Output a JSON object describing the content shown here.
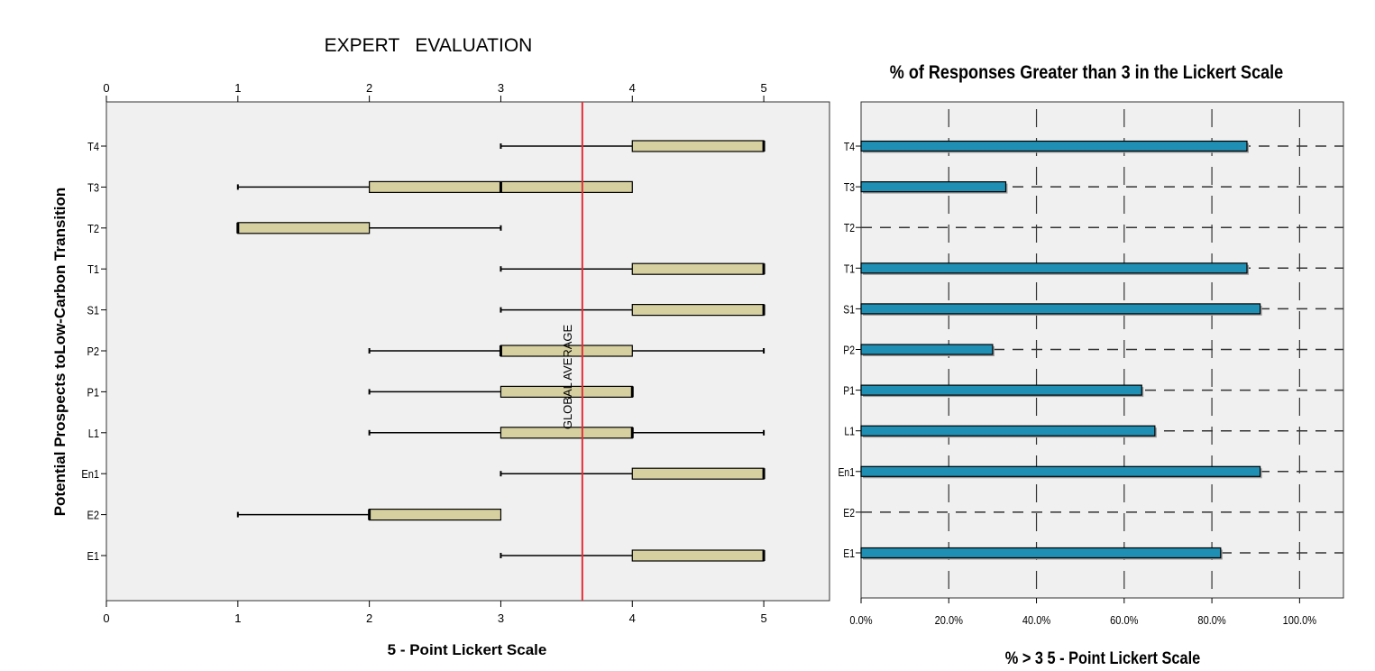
{
  "chart_data": [
    {
      "type": "boxplot",
      "title": "EXPERT   EVALUATION",
      "xlabel": "5 - Point Lickert Scale",
      "ylabel": "Potential Prospects toLow-Carbon Transition",
      "xlim": [
        0,
        5.5
      ],
      "xticks": [
        "0",
        "1",
        "2",
        "3",
        "4",
        "5"
      ],
      "orientation": "horizontal",
      "box_color": "#d6d0a0",
      "plot_background": "#f0f0f0",
      "reference_line": {
        "label": "GLOBAL AVERAGE",
        "value": 3.62,
        "color": "#e0303a"
      },
      "categories": [
        "T4",
        "T3",
        "T2",
        "T1",
        "S1",
        "P2",
        "P1",
        "L1",
        "En1",
        "E2",
        "E1"
      ],
      "series": [
        {
          "category": "T4",
          "min": 3,
          "q1": 4,
          "median": 5,
          "q3": 5,
          "max": 5
        },
        {
          "category": "T3",
          "min": 1,
          "q1": 2,
          "median": 3,
          "q3": 4,
          "max": 4
        },
        {
          "category": "T2",
          "min": 1,
          "q1": 1,
          "median": 1,
          "q3": 2,
          "max": 3
        },
        {
          "category": "T1",
          "min": 3,
          "q1": 4,
          "median": 5,
          "q3": 5,
          "max": 5
        },
        {
          "category": "S1",
          "min": 3,
          "q1": 4,
          "median": 5,
          "q3": 5,
          "max": 5
        },
        {
          "category": "P2",
          "min": 2,
          "q1": 3,
          "median": 3,
          "q3": 4,
          "max": 5
        },
        {
          "category": "P1",
          "min": 2,
          "q1": 3,
          "median": 4,
          "q3": 4,
          "max": 4
        },
        {
          "category": "L1",
          "min": 2,
          "q1": 3,
          "median": 4,
          "q3": 4,
          "max": 5
        },
        {
          "category": "En1",
          "min": 3,
          "q1": 4,
          "median": 5,
          "q3": 5,
          "max": 5
        },
        {
          "category": "E2",
          "min": 1,
          "q1": 2,
          "median": 2,
          "q3": 3,
          "max": 3
        },
        {
          "category": "E1",
          "min": 3,
          "q1": 4,
          "median": 5,
          "q3": 5,
          "max": 5
        }
      ]
    },
    {
      "type": "bar",
      "orientation": "horizontal",
      "title": "% of Responses Greater than 3 in the Lickert Scale",
      "xlabel": "% > 3 5 - Point Lickert Scale",
      "xlim": [
        0,
        1.1
      ],
      "xticks": [
        "0.0%",
        "20.0%",
        "40.0%",
        "60.0%",
        "80.0%",
        "100.0%"
      ],
      "grid": "dashed",
      "bar_color": "#1f8fb3",
      "plot_background": "#f0f0f0",
      "categories": [
        "T4",
        "T3",
        "T2",
        "T1",
        "S1",
        "P2",
        "P1",
        "L1",
        "En1",
        "E2",
        "E1"
      ],
      "values": [
        0.88,
        0.33,
        0.0,
        0.88,
        0.91,
        0.3,
        0.64,
        0.67,
        0.91,
        0.0,
        0.82
      ]
    }
  ]
}
